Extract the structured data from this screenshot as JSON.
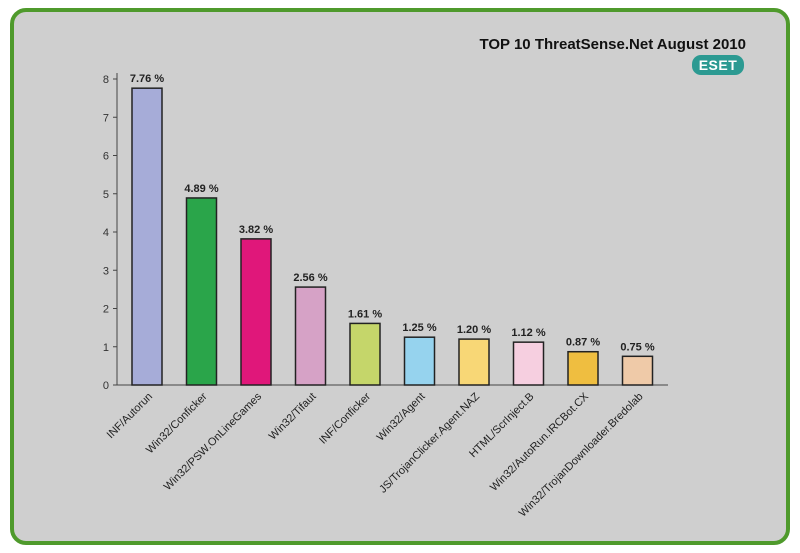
{
  "chart_data": {
    "type": "bar",
    "title": "TOP 10 ThreatSense.Net August 2010",
    "categories": [
      "INF/Autorun",
      "Win32/Conficker",
      "Win32/PSW.OnLineGames",
      "Win32/Tifaut",
      "INF/Conficker",
      "Win32/Agent",
      "JS/TrojanClicker.Agent.NAZ",
      "HTML/ScrInject.B",
      "Win32/AutoRun.IRCBot.CX",
      "Win32/TrojanDownloader.Bredolab"
    ],
    "values": [
      7.76,
      4.89,
      3.82,
      2.56,
      1.61,
      1.25,
      1.2,
      1.12,
      0.87,
      0.75
    ],
    "value_labels": [
      "7.76 %",
      "4.89 %",
      "3.82 %",
      "2.56 %",
      "1.61 %",
      "1.25 %",
      "1.20 %",
      "1.12 %",
      "0.87 %",
      "0.75 %"
    ],
    "colors": [
      "#a6acd8",
      "#2aa54a",
      "#e0177a",
      "#d6a2c6",
      "#c5d66a",
      "#96d3ee",
      "#f8d776",
      "#f6cfe0",
      "#efbe40",
      "#efcaa8"
    ],
    "ylim": [
      0,
      8
    ],
    "yticks": [
      0,
      1,
      2,
      3,
      4,
      5,
      6,
      7,
      8
    ],
    "xlabel": "",
    "ylabel": "",
    "grid": false,
    "legend": "none"
  },
  "logo": {
    "text": "ESET"
  },
  "colors": {
    "frame_border": "#4f9a2c",
    "background": "#cfcfcf",
    "logo_bg": "#2c9a92"
  }
}
